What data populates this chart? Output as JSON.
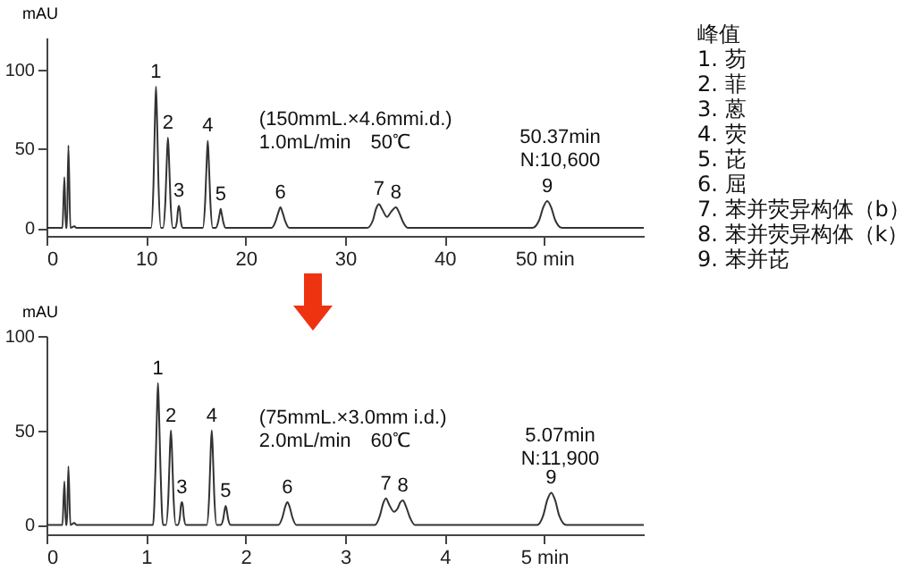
{
  "chart_data": [
    {
      "type": "line",
      "ylabel": "mAU",
      "xlim": [
        0,
        60
      ],
      "xticks": [
        0,
        10,
        20,
        30,
        40,
        {
          "value": 50,
          "label": "50 min"
        }
      ],
      "ylim": [
        -5,
        120
      ],
      "yticks": [
        0,
        50,
        100
      ],
      "x": [
        0,
        1.6,
        1.8,
        1.95,
        2.05,
        2.2,
        2.4,
        2.8,
        3.0,
        10.5,
        10.75,
        10.9,
        11,
        11.1,
        11.25,
        11.5,
        11.7,
        11.95,
        12.1,
        12.2,
        12.3,
        12.45,
        12.7,
        12.9,
        13.1,
        13.2,
        13.3,
        13.4,
        13.5,
        13.7,
        15.7,
        15.95,
        16.1,
        16.2,
        16.3,
        16.45,
        16.7,
        17.0,
        17.25,
        17.4,
        17.5,
        17.6,
        17.75,
        18.0,
        22.6,
        23.0,
        23.3,
        23.5,
        23.7,
        24.0,
        24.4,
        32.2,
        32.8,
        33.1,
        33.4,
        33.7,
        34.2,
        34.6,
        35.1,
        35.4,
        35.8,
        36.3,
        48.8,
        49.5,
        49.9,
        50.3,
        50.7,
        51.1,
        51.8,
        60
      ],
      "series": [
        {
          "color": "#333333",
          "values": [
            0,
            0,
            32,
            0,
            0,
            52,
            0,
            1,
            0,
            0,
            28,
            70,
            89,
            70,
            28,
            0,
            0,
            18,
            45,
            57,
            45,
            18,
            0,
            0,
            4,
            11,
            14,
            11,
            4,
            0,
            0,
            18,
            43,
            55,
            43,
            18,
            0,
            0,
            4,
            9,
            12,
            9,
            4,
            0,
            0,
            4,
            10,
            13,
            10,
            4,
            0,
            0,
            5,
            12,
            15,
            12,
            7,
            10,
            13,
            10,
            4,
            0,
            0,
            5,
            13,
            17,
            13,
            5,
            0,
            0
          ]
        }
      ],
      "annotations": [
        "(150mmL.×4.6mmi.d.)\n1.0mL/min　50℃",
        "50.37min\nN:10,600",
        {
          "text": "1",
          "x": 11,
          "y": 89
        },
        {
          "text": "2",
          "x": 12.2,
          "y": 57
        },
        {
          "text": "3",
          "x": 13.3,
          "y": 14
        },
        {
          "text": "4",
          "x": 16.2,
          "y": 55
        },
        {
          "text": "5",
          "x": 17.5,
          "y": 12
        },
        {
          "text": "6",
          "x": 23.5,
          "y": 13
        },
        {
          "text": "7",
          "x": 33.4,
          "y": 15
        },
        {
          "text": "8",
          "x": 35.1,
          "y": 13
        },
        {
          "text": "9",
          "x": 50.3,
          "y": 17
        }
      ]
    },
    {
      "type": "line",
      "ylabel": "mAU",
      "xlim": [
        0,
        6
      ],
      "xticks": [
        0,
        1,
        2,
        3,
        4,
        {
          "value": 5,
          "label": "5 min"
        }
      ],
      "ylim": [
        -5,
        100
      ],
      "yticks": [
        0,
        50,
        100
      ],
      "x": [
        0,
        0.16,
        0.18,
        0.195,
        0.205,
        0.22,
        0.24,
        0.28,
        0.3,
        1.07,
        1.095,
        1.11,
        1.12,
        1.13,
        1.145,
        1.17,
        1.2,
        1.225,
        1.24,
        1.25,
        1.26,
        1.275,
        1.3,
        1.32,
        1.34,
        1.35,
        1.36,
        1.37,
        1.38,
        1.4,
        1.61,
        1.635,
        1.65,
        1.66,
        1.67,
        1.685,
        1.71,
        1.75,
        1.775,
        1.79,
        1.8,
        1.81,
        1.825,
        1.85,
        2.33,
        2.37,
        2.4,
        2.42,
        2.44,
        2.47,
        2.51,
        3.3,
        3.35,
        3.38,
        3.41,
        3.44,
        3.49,
        3.53,
        3.555,
        3.58,
        3.61,
        3.65,
        3.7,
        4.93,
        4.99,
        5.03,
        5.07,
        5.11,
        5.15,
        5.22,
        6
      ],
      "series": [
        {
          "color": "#333333",
          "values": [
            0,
            0,
            23,
            0,
            0,
            31,
            0,
            1,
            0,
            0,
            30,
            60,
            75,
            60,
            30,
            0,
            0,
            16,
            40,
            50,
            40,
            16,
            0,
            0,
            4,
            10,
            12,
            10,
            4,
            0,
            0,
            16,
            40,
            50,
            40,
            16,
            0,
            0,
            3,
            8,
            10,
            8,
            3,
            0,
            0,
            4,
            10,
            12,
            10,
            4,
            0,
            0,
            5,
            11,
            14,
            11,
            7,
            9,
            12,
            13,
            10,
            4,
            0,
            0,
            5,
            13,
            17,
            13,
            5,
            0,
            0
          ]
        }
      ],
      "annotations": [
        "(75mmL.×3.0mm i.d.)\n2.0mL/min　60℃",
        "5.07min\nN:11,900",
        {
          "text": "1",
          "x": 1.12,
          "y": 75
        },
        {
          "text": "2",
          "x": 1.25,
          "y": 50
        },
        {
          "text": "3",
          "x": 1.36,
          "y": 12
        },
        {
          "text": "4",
          "x": 1.66,
          "y": 50
        },
        {
          "text": "5",
          "x": 1.8,
          "y": 10
        },
        {
          "text": "6",
          "x": 2.42,
          "y": 12
        },
        {
          "text": "7",
          "x": 3.41,
          "y": 14
        },
        {
          "text": "8",
          "x": 3.58,
          "y": 13
        },
        {
          "text": "9",
          "x": 5.07,
          "y": 17
        }
      ]
    },
    {
      "type": "other",
      "title": "峰值",
      "annotations": [
        "1. 芴",
        "2. 菲",
        "3. 蒽",
        "4. 荧",
        "5. 芘",
        "6. 屈",
        "7. 苯并荧异构体（b）",
        "8. 苯并荧异构体（k）",
        "9. 苯并芘"
      ]
    }
  ]
}
